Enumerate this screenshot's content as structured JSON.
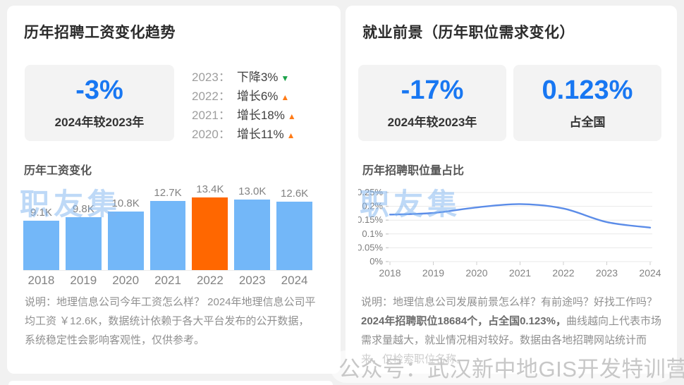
{
  "colors": {
    "page_background": "#f1f1f1",
    "card_background": "#ffffff",
    "stat_box_background": "#f3f3f3",
    "accent_blue": "#1877f2",
    "bar_blue": "#73b7f8",
    "bar_highlight_orange": "#ff6700",
    "line_blue": "#5b8ce8",
    "up_arrow_orange": "#ff7b17",
    "down_arrow_green": "#1ba24a",
    "watermark_blue": "rgba(125,180,240,0.5)"
  },
  "left_panel": {
    "title": "历年招聘工资变化趋势",
    "stat": {
      "value": "-3%",
      "label": "2024年较2023年"
    },
    "yearly_changes": [
      {
        "year_label": "2023：",
        "text": "下降3%",
        "direction": "down"
      },
      {
        "year_label": "2022：",
        "text": "增长6%",
        "direction": "up"
      },
      {
        "year_label": "2021：",
        "text": "增长18%",
        "direction": "up"
      },
      {
        "year_label": "2020：",
        "text": "增长11%",
        "direction": "up"
      }
    ],
    "watermark": "职友集",
    "description": "说明：地理信息公司今年工资怎么样？ 2024年地理信息公司平均工资 ￥12.6K，数据统计依赖于各大平台发布的公开数据，系统稳定性会影响客观性，仅供参考。"
  },
  "right_panel": {
    "title": "就业前景（历年职位需求变化）",
    "stats": [
      {
        "value": "-17%",
        "label": "2024年较2023年"
      },
      {
        "value": "0.123%",
        "label": "占全国"
      }
    ],
    "watermark": "职友集",
    "description_pre": "说明：地理信息公司发展前景怎么样？有前途吗？好找工作吗？ ",
    "description_bold": "2024年招聘职位18684个，占全国0.123%，",
    "description_post": "曲线越向上代表市场需求量越大，就业情况相对较好。数据由各地招聘网站统计而来，仅检索职位名称。"
  },
  "footer_watermark": {
    "icon": "wechat-icon",
    "text": "公众号：武汉新中地GIS开发特训营"
  },
  "chart_data": [
    {
      "type": "bar",
      "title": "历年工资变化",
      "categories": [
        "2018",
        "2019",
        "2020",
        "2021",
        "2022",
        "2023",
        "2024"
      ],
      "values": [
        9.1,
        9.8,
        10.8,
        12.7,
        13.4,
        13.0,
        12.6
      ],
      "value_labels": [
        "9.1K",
        "9.8K",
        "10.8K",
        "12.7K",
        "13.4K",
        "13.0K",
        "12.6K"
      ],
      "unit": "K",
      "highlight_category": "2022",
      "ylim": [
        0,
        13.4
      ],
      "grid": false
    },
    {
      "type": "line",
      "title": "历年招聘职位量占比",
      "x": [
        "2018",
        "2019",
        "2020",
        "2021",
        "2022",
        "2023",
        "2024"
      ],
      "values": [
        0.17,
        0.176,
        0.196,
        0.208,
        0.192,
        0.143,
        0.123
      ],
      "y_ticks": [
        "0.25%",
        "0.2%",
        "0.15%",
        "0.1%",
        "0.05%",
        "0%"
      ],
      "ylim": [
        0,
        0.25
      ],
      "unit": "%",
      "grid": true,
      "legend": "none"
    }
  ]
}
